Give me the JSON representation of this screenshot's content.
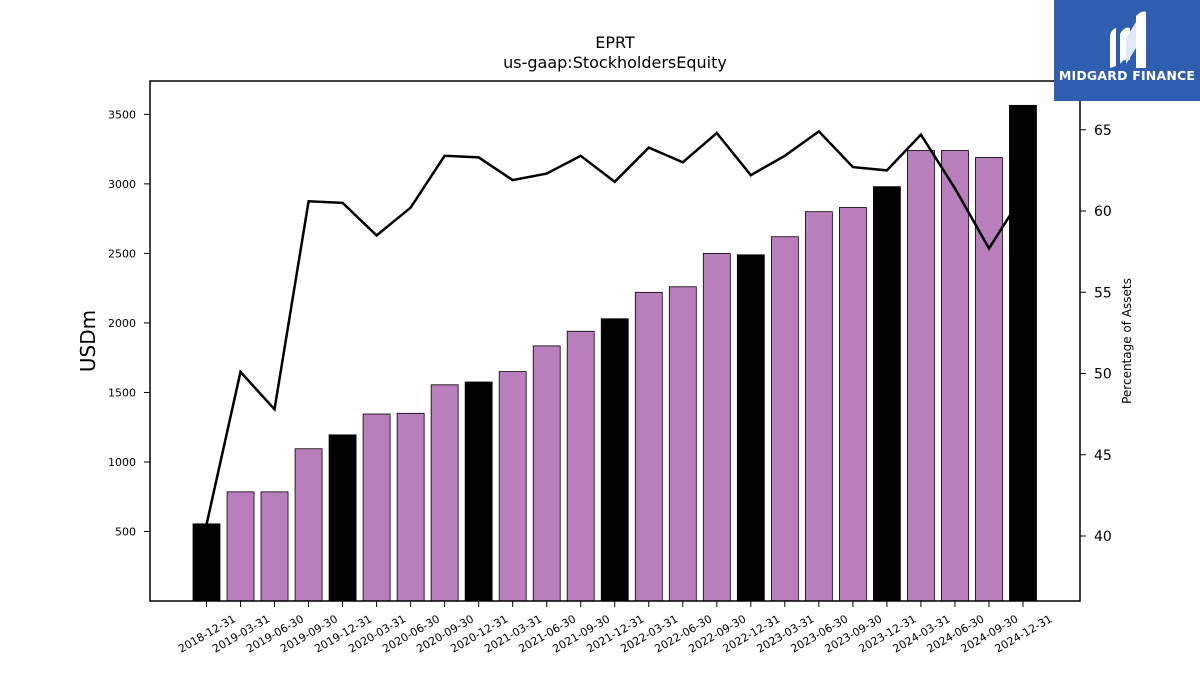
{
  "chart_data": {
    "type": "bar",
    "title": "EPRT",
    "subtitle": "us-gaap:StockholdersEquity",
    "ylabel": "USDm",
    "y2label": "Percentage of Assets",
    "ylim": [
      0,
      3740
    ],
    "y2lim": [
      36,
      68
    ],
    "yticks": [
      500,
      1000,
      1500,
      2000,
      2500,
      3000,
      3500
    ],
    "y2ticks": [
      40,
      45,
      50,
      55,
      60,
      65
    ],
    "categories": [
      "2018-12-31",
      "2019-03-31",
      "2019-06-30",
      "2019-09-30",
      "2019-12-31",
      "2020-03-31",
      "2020-06-30",
      "2020-09-30",
      "2020-12-31",
      "2021-03-31",
      "2021-06-30",
      "2021-09-30",
      "2021-12-31",
      "2022-03-31",
      "2022-06-30",
      "2022-09-30",
      "2022-12-31",
      "2023-03-31",
      "2023-06-30",
      "2023-09-30",
      "2023-12-31",
      "2024-03-31",
      "2024-06-30",
      "2024-09-30",
      "2024-12-31"
    ],
    "series": [
      {
        "kind": "bar",
        "values": [
          555,
          785,
          785,
          1095,
          1195,
          1345,
          1350,
          1555,
          1575,
          1650,
          1835,
          1940,
          2030,
          2220,
          2260,
          2500,
          2490,
          2620,
          2800,
          2830,
          2980,
          3240,
          3240,
          3190,
          3565
        ],
        "colors": [
          "#000000",
          "#b97fbd",
          "#b97fbd",
          "#b97fbd",
          "#000000",
          "#b97fbd",
          "#b97fbd",
          "#b97fbd",
          "#000000",
          "#b97fbd",
          "#b97fbd",
          "#b97fbd",
          "#000000",
          "#b97fbd",
          "#b97fbd",
          "#b97fbd",
          "#000000",
          "#b97fbd",
          "#b97fbd",
          "#b97fbd",
          "#000000",
          "#b97fbd",
          "#b97fbd",
          "#b97fbd",
          "#000000"
        ]
      },
      {
        "kind": "line",
        "axis": "right",
        "color": "#000000",
        "values": [
          40.7,
          50.1,
          47.8,
          60.6,
          60.5,
          58.5,
          60.2,
          63.4,
          63.3,
          61.9,
          62.3,
          63.4,
          61.8,
          63.9,
          63.0,
          64.8,
          62.2,
          63.4,
          64.9,
          62.7,
          62.5,
          64.7,
          61.4,
          57.7,
          61.0
        ]
      }
    ],
    "grid": false,
    "legend": "none"
  },
  "logo": {
    "text": "MIDGARD FINANCE",
    "color": "#2f5db0"
  }
}
